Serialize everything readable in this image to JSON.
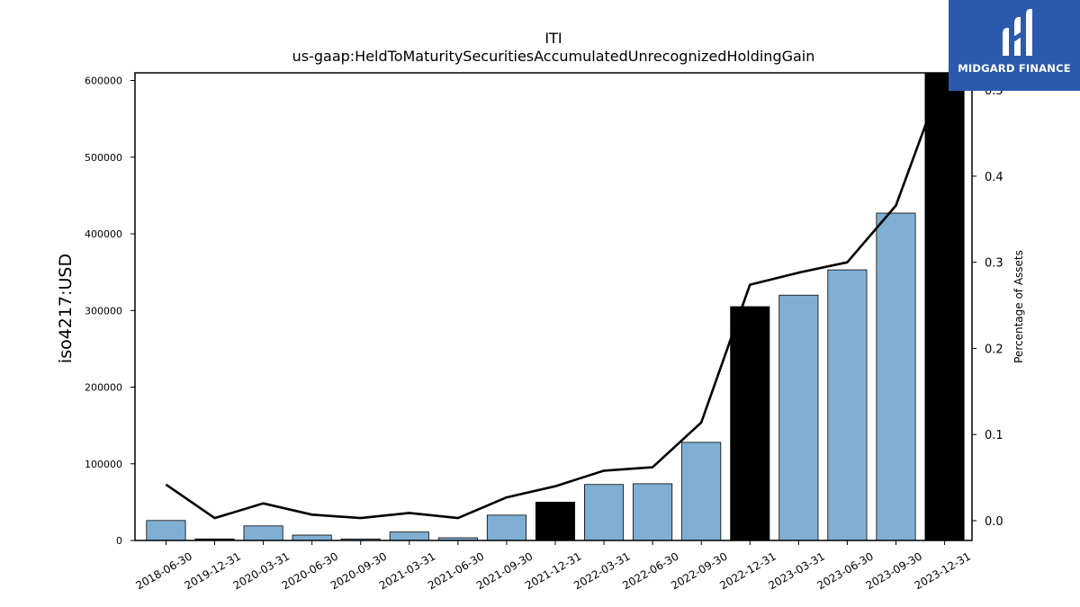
{
  "chart_data": {
    "type": "bar",
    "title": "ITI",
    "subtitle": "us-gaap:HeldToMaturitySecuritiesAccumulatedUnrecognizedHoldingGain",
    "ylabel": "iso4217:USD",
    "y2label": "Percentage of Assets",
    "categories": [
      "2018-06-30",
      "2019-12-31",
      "2020-03-31",
      "2020-06-30",
      "2020-09-30",
      "2021-03-31",
      "2021-06-30",
      "2021-09-30",
      "2021-12-31",
      "2022-03-31",
      "2022-06-30",
      "2022-09-30",
      "2022-12-31",
      "2023-03-31",
      "2023-06-30",
      "2023-09-30",
      "2023-12-31"
    ],
    "series": [
      {
        "type": "bar",
        "values": [
          26000,
          2000,
          19000,
          7000,
          2000,
          11000,
          3500,
          33000,
          50000,
          73000,
          74000,
          128000,
          305000,
          320000,
          353000,
          427000,
          610000
        ],
        "highlight": [
          false,
          true,
          false,
          false,
          false,
          false,
          false,
          false,
          true,
          false,
          false,
          false,
          true,
          false,
          false,
          false,
          true
        ]
      },
      {
        "type": "line",
        "axis": "right",
        "values": [
          0.042,
          0.003,
          0.02,
          0.007,
          0.003,
          0.009,
          0.003,
          0.027,
          0.04,
          0.058,
          0.062,
          0.114,
          0.274,
          0.288,
          0.3,
          0.366,
          0.52
        ]
      }
    ],
    "ylim": [
      0,
      610000
    ],
    "yticks": [
      0,
      100000,
      200000,
      300000,
      400000,
      500000,
      600000
    ],
    "y2lim": [
      -0.023,
      0.52
    ],
    "y2ticks": [
      0.0,
      0.1,
      0.2,
      0.3,
      0.4,
      0.5
    ],
    "colors": {
      "bar": "#7fb0d4",
      "highlight_bar": "#000000",
      "line": "#000000"
    },
    "grid": false,
    "legend": "none"
  },
  "logo": {
    "text": "MIDGARD FINANCE",
    "background": "#2b5aad"
  }
}
